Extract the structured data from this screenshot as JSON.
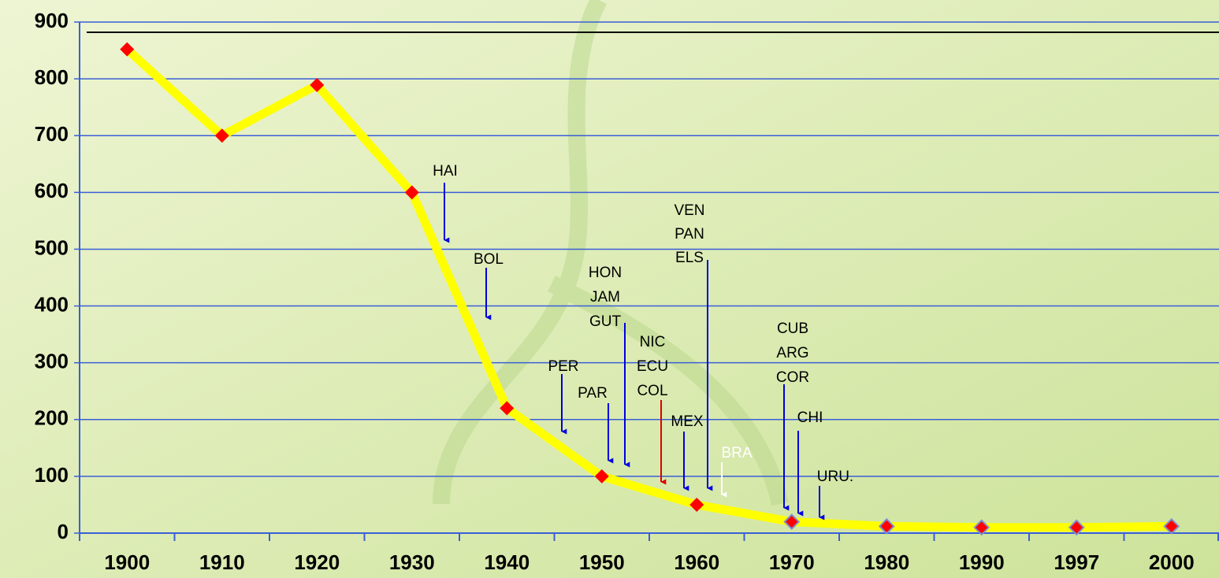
{
  "chart_data": {
    "type": "line",
    "categories": [
      "1900",
      "1910",
      "1920",
      "1930",
      "1940",
      "1950",
      "1960",
      "1970",
      "1980",
      "1990",
      "1997",
      "2000"
    ],
    "series": [
      {
        "color": "#ffff00",
        "marker_color": "#ff0000",
        "values": [
          852,
          700,
          789,
          600,
          220,
          100,
          50,
          20,
          12,
          10,
          10,
          12
        ]
      }
    ],
    "ylim": [
      0,
      900
    ],
    "yticks": [
      0,
      100,
      200,
      300,
      400,
      500,
      600,
      700,
      800,
      900
    ],
    "grid": true,
    "grid_color": "#3a5fd6",
    "reference_line": {
      "value": 882,
      "color": "#000000"
    },
    "annotations": [
      {
        "lines": [
          "HAI"
        ],
        "color": "#000000",
        "arrow_color": "#0000dd"
      },
      {
        "lines": [
          "BOL"
        ],
        "color": "#000000",
        "arrow_color": "#0000dd"
      },
      {
        "lines": [
          "PER"
        ],
        "color": "#000000",
        "arrow_color": "#0000dd"
      },
      {
        "lines": [
          "PAR"
        ],
        "color": "#000000",
        "arrow_color": "#0000dd"
      },
      {
        "lines": [
          "HON",
          "JAM",
          "GUT"
        ],
        "color": "#000000",
        "arrow_color": "#0000dd"
      },
      {
        "lines": [
          "NIC",
          "ECU",
          "COL"
        ],
        "color": "#000000",
        "arrow_color": "#dd0000"
      },
      {
        "lines": [
          "MEX"
        ],
        "color": "#000000",
        "arrow_color": "#0000dd"
      },
      {
        "lines": [
          "VEN",
          "PAN",
          "ELS"
        ],
        "color": "#000000",
        "arrow_color": "#0000dd"
      },
      {
        "lines": [
          "BRA"
        ],
        "color": "#ffffff",
        "arrow_color": "#ffffff"
      },
      {
        "lines": [
          "CUB",
          "ARG",
          "COR"
        ],
        "color": "#000000",
        "arrow_color": "#0000dd"
      },
      {
        "lines": [
          "CHI"
        ],
        "color": "#000000",
        "arrow_color": "#0000dd"
      },
      {
        "lines": [
          "URU."
        ],
        "color": "#000000",
        "arrow_color": "#0000dd"
      }
    ]
  }
}
